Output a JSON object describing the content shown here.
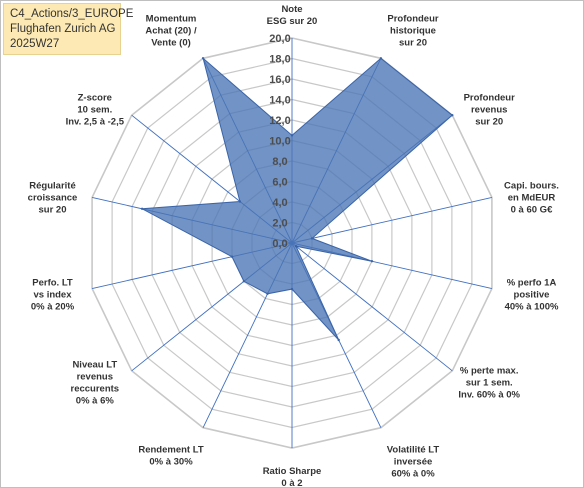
{
  "header": {
    "line1": "C4_Actions/3_EUROPE",
    "line2": "Flughafen Zurich AG",
    "line3": "2025W27"
  },
  "chart_data": {
    "type": "radar",
    "title": "",
    "rlim": [
      0,
      20
    ],
    "tick_step": 2,
    "tick_labels": [
      "0,0",
      "2,0",
      "4,0",
      "6,0",
      "8,0",
      "10,0",
      "12,0",
      "14,0",
      "16,0",
      "18,0",
      "20,0"
    ],
    "grid": true,
    "series_color": "#4a74b5",
    "axes": [
      {
        "label": [
          "Note",
          "ESG sur 20"
        ],
        "value": 10.5
      },
      {
        "label": [
          "Profondeur",
          "historique",
          "sur 20"
        ],
        "value": 20.0
      },
      {
        "label": [
          "Profondeur",
          "revenus",
          "sur 20"
        ],
        "value": 20.0
      },
      {
        "label": [
          "Capi. bours.",
          "en MdEUR",
          "0 à 60 G€"
        ],
        "value": 2.0
      },
      {
        "label": [
          "% perfo 1A",
          "positive",
          "40% à 100%"
        ],
        "value": 8.0
      },
      {
        "label": [
          "% perte max.",
          "sur 1 sem.",
          "Inv. 60% à 0%"
        ],
        "value": 0.5
      },
      {
        "label": [
          "Volatilité LT",
          "inversée",
          "60% à 0%"
        ],
        "value": 10.5
      },
      {
        "label": [
          "Ratio Sharpe",
          "0 à 2"
        ],
        "value": 4.5
      },
      {
        "label": [
          "Rendement LT",
          "0% à 30%"
        ],
        "value": 5.5
      },
      {
        "label": [
          "Niveau LT",
          "revenus",
          "reccurents",
          "0% à 6%"
        ],
        "value": 6.0
      },
      {
        "label": [
          "Perfo. LT",
          "vs index",
          "0% à 20%"
        ],
        "value": 6.0
      },
      {
        "label": [
          "Régularité",
          "croissance",
          "sur 20"
        ],
        "value": 15.0
      },
      {
        "label": [
          "Z-score",
          "10 sem.",
          "Inv. 2,5 à -2,5"
        ],
        "value": 6.5
      },
      {
        "label": [
          "Momentum",
          "Achat (20) /",
          "Vente (0)"
        ],
        "value": 20.0
      }
    ]
  }
}
